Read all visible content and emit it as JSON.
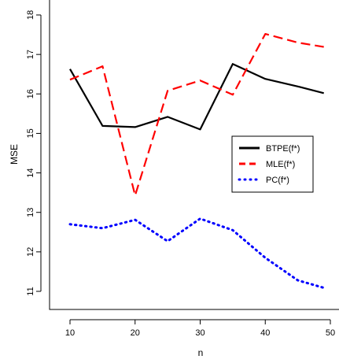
{
  "chart_data": {
    "type": "line",
    "title": "",
    "xlabel": "n",
    "ylabel": "MSE",
    "xlim": [
      10,
      50
    ],
    "ylim": [
      11,
      18
    ],
    "x_ticks": [
      "10",
      "20",
      "30",
      "40",
      "50"
    ],
    "y_ticks": [
      "11",
      "12",
      "13",
      "14",
      "15",
      "16",
      "17",
      "18"
    ],
    "x": [
      10,
      15,
      20,
      25,
      30,
      35,
      40,
      45,
      49
    ],
    "series": [
      {
        "name": "BTPE(f*)",
        "color": "#000000",
        "line_style": "solid",
        "values": [
          16.63,
          15.19,
          15.16,
          15.42,
          15.1,
          16.76,
          16.38,
          16.19,
          16.02
        ]
      },
      {
        "name": "MLE(f*)",
        "color": "#ff0000",
        "line_style": "dashed",
        "values": [
          16.36,
          16.7,
          13.43,
          16.08,
          16.34,
          15.98,
          17.52,
          17.3,
          17.19
        ]
      },
      {
        "name": "PC(f*)",
        "color": "#0000ff",
        "line_style": "dotted",
        "values": [
          12.7,
          12.6,
          12.81,
          12.27,
          12.84,
          12.55,
          11.85,
          11.28,
          11.09
        ]
      }
    ],
    "grid": false,
    "legend_position": "right"
  }
}
